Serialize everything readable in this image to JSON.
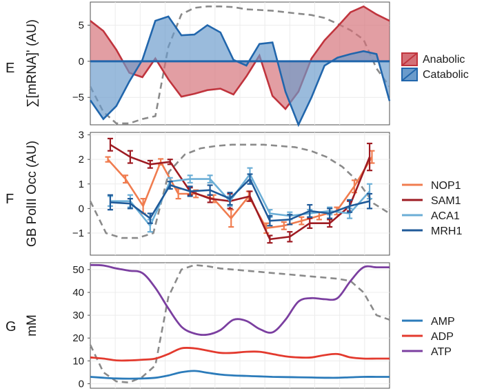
{
  "figure": {
    "panel_letters": [
      "E",
      "F",
      "G"
    ]
  },
  "chart_data": [
    {
      "panel": "E",
      "type": "area",
      "ylabel": "∑[mRNA]' (AU)",
      "yticks": [
        5,
        0,
        -5
      ],
      "ylim": [
        -8.8,
        8.2
      ],
      "xlim": [
        0,
        23
      ],
      "grid": true,
      "legend_position": "right",
      "x": [
        0,
        1,
        2,
        3,
        4,
        5,
        6,
        7,
        8,
        9,
        10,
        11,
        12,
        13,
        14,
        15,
        16,
        17,
        18,
        19,
        20,
        21,
        22,
        23
      ],
      "series": [
        {
          "name": "Anabolic",
          "color": "#c0343d",
          "fill": "#d47077",
          "values": [
            5.6,
            4.2,
            1.6,
            -1.6,
            -2.2,
            0.4,
            -2.5,
            -4.9,
            -4.5,
            -4.0,
            -3.8,
            -4.6,
            -2.1,
            0.8,
            -4.8,
            -6.6,
            -4.2,
            0.4,
            2.9,
            4.8,
            6.8,
            7.6,
            6.5,
            5.6
          ]
        },
        {
          "name": "Catabolic",
          "color": "#2166ac",
          "fill": "#6a9bcb",
          "values": [
            -5.4,
            -8.0,
            -6.2,
            -2.8,
            0.2,
            5.6,
            6.2,
            3.6,
            3.7,
            5.0,
            4.0,
            0.2,
            -0.6,
            2.4,
            2.6,
            -4.2,
            -8.8,
            -5.0,
            -0.6,
            0.5,
            1.0,
            1.4,
            1.0,
            -5.5
          ]
        }
      ],
      "dashed_reference": {
        "color": "#8a8a8a",
        "values": [
          -3.5,
          -7.0,
          -8.6,
          -8.6,
          -8.0,
          -7.6,
          2.0,
          6.5,
          7.4,
          7.6,
          7.6,
          7.5,
          7.2,
          7.1,
          7.0,
          6.8,
          6.6,
          6.4,
          6.0,
          5.2,
          4.3,
          3.0,
          -1.0,
          -3.5
        ]
      }
    },
    {
      "panel": "F",
      "type": "line",
      "ylabel": "GB PolII Occ (AU)",
      "yticks": [
        3,
        2,
        1,
        0,
        -1
      ],
      "ylim": [
        -1.9,
        3.1
      ],
      "xlim": [
        0,
        23
      ],
      "grid": true,
      "legend_position": "right",
      "x": [
        1,
        2,
        3,
        4,
        5,
        6,
        7,
        8,
        9,
        10,
        11,
        12,
        13,
        14,
        15,
        16,
        17,
        18,
        19,
        20
      ],
      "series": [
        {
          "name": "NOP1",
          "color": "#f07c4f",
          "values": [
            2.0,
            1.2,
            0.1,
            1.9,
            0.6,
            0.6,
            0.4,
            -0.4,
            0.5,
            -0.8,
            -0.7,
            -0.5,
            -0.3,
            -0.1,
            0.9,
            2.1
          ],
          "x": [
            1,
            2,
            3,
            4,
            5,
            6,
            7,
            8,
            9,
            10,
            11,
            12,
            13,
            14,
            15,
            16
          ],
          "err": [
            0.1,
            0.15,
            0.3,
            0.12,
            0.2,
            0.15,
            0.15,
            0.35,
            0.2,
            0.2,
            0.15,
            0.15,
            0.15,
            0.15,
            0.25,
            0.25
          ]
        },
        {
          "name": "SAM1",
          "color": "#9e1b22",
          "values": [
            2.6,
            2.1,
            1.8,
            1.9,
            0.7,
            0.4,
            0.3,
            0.5,
            -1.25,
            -1.15,
            -0.6,
            -0.6,
            0.1,
            2.1
          ],
          "x": [
            1,
            2,
            3,
            4,
            5,
            6,
            7,
            8,
            9,
            10,
            11,
            12,
            13,
            14
          ],
          "err": [
            0.25,
            0.25,
            0.15,
            0.1,
            0.15,
            0.15,
            0.3,
            0.2,
            0.15,
            0.2,
            0.2,
            0.15,
            0.2,
            0.55
          ]
        },
        {
          "name": "ACA1",
          "color": "#6baed6",
          "values": [
            0.3,
            0.3,
            -0.7,
            1.1,
            1.2,
            1.2,
            0.3,
            1.4,
            -0.2,
            -0.3,
            -0.2,
            -0.1,
            -0.2,
            0.7
          ],
          "x": [
            1,
            2,
            3,
            4,
            5,
            6,
            7,
            8,
            9,
            10,
            11,
            12,
            13,
            14
          ],
          "err": [
            0.2,
            0.25,
            0.25,
            0.15,
            0.15,
            0.15,
            0.2,
            0.25,
            0.15,
            0.15,
            0.15,
            0.15,
            0.2,
            0.3
          ]
        },
        {
          "name": "MRH1",
          "color": "#1f5a99",
          "values": [
            0.25,
            0.2,
            -0.4,
            0.95,
            0.7,
            0.75,
            0.4,
            1.2,
            -0.5,
            -0.45,
            -0.1,
            -0.2,
            0.1,
            0.3
          ],
          "x": [
            1,
            2,
            3,
            4,
            5,
            6,
            7,
            8,
            9,
            10,
            11,
            12,
            13,
            14
          ],
          "err": [
            0.3,
            0.2,
            0.2,
            0.15,
            0.2,
            0.2,
            0.25,
            0.2,
            0.2,
            0.2,
            0.25,
            0.2,
            0.25,
            0.3
          ]
        }
      ],
      "dashed_reference": {
        "color": "#8a8a8a",
        "values": [
          0.3,
          -1.0,
          -1.2,
          -1.2,
          -1.0,
          1.5,
          2.2,
          2.45,
          2.55,
          2.6,
          2.6,
          2.6,
          2.55,
          2.5,
          2.35,
          2.1,
          1.7,
          1.1,
          0.2,
          -0.2
        ]
      }
    },
    {
      "panel": "G",
      "type": "line",
      "ylabel": "mM",
      "yticks": [
        50,
        40,
        30,
        20,
        10,
        0
      ],
      "ylim": [
        -2,
        53
      ],
      "xlim": [
        0,
        23
      ],
      "grid": true,
      "legend_position": "right",
      "x": [
        0,
        1,
        2,
        3,
        4,
        5,
        6,
        7,
        8,
        9,
        10,
        11,
        12,
        13,
        14,
        15,
        16,
        17,
        18,
        19,
        20,
        21,
        22,
        23
      ],
      "series": [
        {
          "name": "AMP",
          "color": "#2b7bba",
          "values": [
            3.0,
            2.6,
            2.3,
            2.2,
            2.3,
            2.6,
            3.6,
            5.0,
            5.6,
            4.8,
            4.0,
            3.6,
            3.4,
            3.2,
            3.0,
            2.9,
            2.8,
            2.7,
            2.6,
            2.6,
            2.8,
            3.0,
            3.0,
            3.0
          ]
        },
        {
          "name": "ADP",
          "color": "#e33a2e",
          "values": [
            11.5,
            11.0,
            10.2,
            10.2,
            10.5,
            11.0,
            13.0,
            15.5,
            15.5,
            14.5,
            13.5,
            13.5,
            14.0,
            14.0,
            13.0,
            12.0,
            11.5,
            11.5,
            12.5,
            13.0,
            11.5,
            11.0,
            11.0,
            11.0
          ]
        },
        {
          "name": "ATP",
          "color": "#7b3fa0",
          "values": [
            52.0,
            51.8,
            50.5,
            49.5,
            48.5,
            42.0,
            33.0,
            25.0,
            22.0,
            21.5,
            23.5,
            28.0,
            27.5,
            24.0,
            22.5,
            28.0,
            36.0,
            37.5,
            37.0,
            37.5,
            45.0,
            51.0,
            51.0,
            51.0
          ]
        }
      ],
      "dashed_reference": {
        "color": "#8a8a8a",
        "values": [
          17.0,
          5.0,
          1.0,
          0.5,
          3.0,
          8.0,
          38.0,
          50.0,
          52.0,
          51.5,
          50.5,
          50.0,
          49.5,
          49.0,
          48.5,
          48.0,
          47.5,
          47.0,
          46.5,
          46.0,
          45.0,
          40.0,
          30.0,
          28.0
        ]
      }
    }
  ]
}
